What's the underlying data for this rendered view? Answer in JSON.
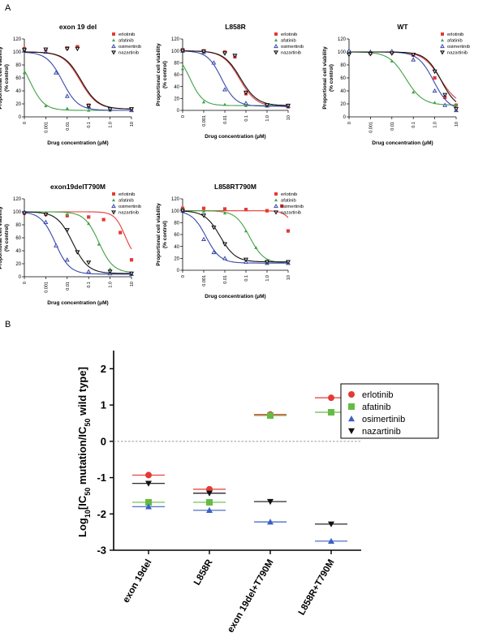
{
  "panel_labels": {
    "a": "A",
    "b": "B"
  },
  "chart_data": [
    {
      "type": "line",
      "panel": "A",
      "title": "exon 19 del",
      "xlabel": "Drug concentration (μM)",
      "ylabel": [
        "Proportional cell viability",
        "(% control)"
      ],
      "xlim": [
        0.0001,
        10
      ],
      "ylim": [
        0,
        120
      ],
      "xscale": "log",
      "x_ticks": [
        "0",
        "0.001",
        "0.01",
        "0.1",
        "1.0",
        "10"
      ],
      "y_ticks": [
        "0",
        "20",
        "40",
        "60",
        "80",
        "100",
        "120"
      ],
      "series": [
        {
          "name": "erlotinib",
          "ic50": 0.04,
          "hill": 1.1,
          "color": "#e53935",
          "marker": "square",
          "points": [
            [
              0.0001,
              105
            ],
            [
              0.001,
              104
            ],
            [
              0.01,
              106
            ],
            [
              0.03,
              108
            ],
            [
              0.1,
              18
            ],
            [
              1,
              12
            ],
            [
              10,
              12
            ]
          ]
        },
        {
          "name": "afatinib",
          "ic50": 0.00018,
          "hill": 1.3,
          "color": "#43a047",
          "marker": "triangle",
          "points": [
            [
              0.0001,
              68
            ],
            [
              0.001,
              17
            ],
            [
              0.01,
              13
            ],
            [
              0.1,
              10
            ],
            [
              1,
              10
            ],
            [
              10,
              10
            ]
          ]
        },
        {
          "name": "osimertinib",
          "ic50": 0.006,
          "hill": 1.2,
          "color": "#3949ab",
          "marker": "triangle-open",
          "points": [
            [
              0.0001,
              102
            ],
            [
              0.001,
              100
            ],
            [
              0.003,
              68
            ],
            [
              0.01,
              32
            ],
            [
              0.1,
              16
            ],
            [
              1,
              12
            ],
            [
              10,
              10
            ]
          ]
        },
        {
          "name": "nazartinib",
          "ic50": 0.045,
          "hill": 1.1,
          "color": "#111111",
          "marker": "triangle-down-open",
          "points": [
            [
              0.0001,
              103
            ],
            [
              0.001,
              104
            ],
            [
              0.01,
              105
            ],
            [
              0.03,
              105
            ],
            [
              0.1,
              17
            ],
            [
              1,
              12
            ],
            [
              10,
              12
            ]
          ]
        }
      ]
    },
    {
      "type": "line",
      "panel": "A",
      "title": "L858R",
      "xlabel": "Drug concentration (μM)",
      "ylabel": [
        "Proportional cell viability",
        "(% control)"
      ],
      "xlim": [
        0.0001,
        10
      ],
      "ylim": [
        0,
        120
      ],
      "xscale": "log",
      "x_ticks": [
        "0",
        "0.001",
        "0.01",
        "0.1",
        "1.0",
        "10"
      ],
      "y_ticks": [
        "0",
        "20",
        "40",
        "60",
        "80",
        "100",
        "120"
      ],
      "series": [
        {
          "name": "erlotinib",
          "ic50": 0.05,
          "hill": 1.1,
          "color": "#e53935",
          "marker": "square",
          "points": [
            [
              0.0001,
              102
            ],
            [
              0.001,
              100
            ],
            [
              0.01,
              98
            ],
            [
              0.03,
              90
            ],
            [
              0.1,
              28
            ],
            [
              1,
              8
            ],
            [
              10,
              6
            ]
          ]
        },
        {
          "name": "afatinib",
          "ic50": 0.00022,
          "hill": 1.4,
          "color": "#43a047",
          "marker": "triangle",
          "points": [
            [
              0.0001,
              70
            ],
            [
              0.001,
              14
            ],
            [
              0.01,
              10
            ],
            [
              0.1,
              8
            ],
            [
              1,
              8
            ],
            [
              10,
              8
            ]
          ]
        },
        {
          "name": "osimertinib",
          "ic50": 0.007,
          "hill": 1.3,
          "color": "#3949ab",
          "marker": "triangle-open",
          "points": [
            [
              0.0001,
              100
            ],
            [
              0.001,
              98
            ],
            [
              0.003,
              80
            ],
            [
              0.01,
              35
            ],
            [
              0.1,
              12
            ],
            [
              1,
              8
            ],
            [
              10,
              7
            ]
          ]
        },
        {
          "name": "nazartinib",
          "ic50": 0.055,
          "hill": 1.1,
          "color": "#111111",
          "marker": "triangle-down-open",
          "points": [
            [
              0.0001,
              100
            ],
            [
              0.001,
              99
            ],
            [
              0.01,
              96
            ],
            [
              0.03,
              92
            ],
            [
              0.1,
              30
            ],
            [
              1,
              9
            ],
            [
              10,
              8
            ]
          ]
        }
      ]
    },
    {
      "type": "line",
      "panel": "A",
      "title": "WT",
      "xlabel": "Drug concentration (μM)",
      "ylabel": [
        "Proportional cell viability",
        "(% control)"
      ],
      "xlim": [
        0.0001,
        10
      ],
      "ylim": [
        0,
        120
      ],
      "xscale": "log",
      "x_ticks": [
        "0",
        "0.001",
        "0.01",
        "0.1",
        "1.0",
        "10"
      ],
      "y_ticks": [
        "0",
        "20",
        "40",
        "60",
        "80",
        "100",
        "120"
      ],
      "series": [
        {
          "name": "erlotinib",
          "ic50": 1.8,
          "hill": 1.1,
          "color": "#e53935",
          "marker": "square",
          "points": [
            [
              0.0001,
              100
            ],
            [
              0.001,
              98
            ],
            [
              0.01,
              99
            ],
            [
              0.1,
              95
            ],
            [
              1,
              60
            ],
            [
              3,
              30
            ],
            [
              10,
              18
            ]
          ]
        },
        {
          "name": "afatinib",
          "ic50": 0.045,
          "hill": 1.1,
          "color": "#43a047",
          "marker": "triangle",
          "points": [
            [
              0.0001,
              100
            ],
            [
              0.001,
              98
            ],
            [
              0.01,
              86
            ],
            [
              0.1,
              38
            ],
            [
              1,
              22
            ],
            [
              10,
              18
            ]
          ]
        },
        {
          "name": "osimertinib",
          "ic50": 0.9,
          "hill": 1.2,
          "color": "#3949ab",
          "marker": "triangle-open",
          "points": [
            [
              0.0001,
              102
            ],
            [
              0.001,
              100
            ],
            [
              0.01,
              101
            ],
            [
              0.1,
              88
            ],
            [
              1,
              40
            ],
            [
              3,
              18
            ],
            [
              10,
              10
            ]
          ]
        },
        {
          "name": "nazartinib",
          "ic50": 2.0,
          "hill": 1.2,
          "color": "#111111",
          "marker": "triangle-down-open",
          "points": [
            [
              0.0001,
              96
            ],
            [
              0.001,
              97
            ],
            [
              0.01,
              98
            ],
            [
              0.1,
              96
            ],
            [
              1,
              70
            ],
            [
              3,
              34
            ],
            [
              10,
              12
            ]
          ]
        }
      ]
    },
    {
      "type": "line",
      "panel": "A",
      "title": "exon19delT790M",
      "xlabel": "Drug concentration (μM)",
      "ylabel": [
        "Proportional cell viability",
        "(% control)"
      ],
      "xlim": [
        0.0001,
        10
      ],
      "ylim": [
        0,
        120
      ],
      "xscale": "log",
      "x_ticks": [
        "0",
        "0.001",
        "0.01",
        "0.1",
        "1.0",
        "10"
      ],
      "y_ticks": [
        "0",
        "20",
        "40",
        "60",
        "80",
        "100",
        "120"
      ],
      "series": [
        {
          "name": "erlotinib",
          "ic50": 5.0,
          "hill": 1.8,
          "color": "#e53935",
          "marker": "square",
          "points": [
            [
              0.0001,
              98
            ],
            [
              0.001,
              96
            ],
            [
              0.01,
              94
            ],
            [
              0.1,
              92
            ],
            [
              0.5,
              88
            ],
            [
              3,
              68
            ],
            [
              10,
              26
            ]
          ]
        },
        {
          "name": "afatinib",
          "ic50": 0.3,
          "hill": 1.3,
          "color": "#43a047",
          "marker": "triangle",
          "points": [
            [
              0.0001,
              100
            ],
            [
              0.001,
              98
            ],
            [
              0.01,
              96
            ],
            [
              0.1,
              82
            ],
            [
              0.3,
              50
            ],
            [
              1,
              12
            ],
            [
              10,
              6
            ]
          ]
        },
        {
          "name": "osimertinib",
          "ic50": 0.0028,
          "hill": 1.3,
          "color": "#3949ab",
          "marker": "triangle-open",
          "points": [
            [
              0.0001,
              100
            ],
            [
              0.001,
              84
            ],
            [
              0.003,
              48
            ],
            [
              0.01,
              26
            ],
            [
              0.1,
              8
            ],
            [
              1,
              5
            ],
            [
              10,
              4
            ]
          ]
        },
        {
          "name": "nazartinib",
          "ic50": 0.018,
          "hill": 1.2,
          "color": "#111111",
          "marker": "triangle-down-open",
          "points": [
            [
              0.0001,
              98
            ],
            [
              0.001,
              96
            ],
            [
              0.01,
              72
            ],
            [
              0.03,
              38
            ],
            [
              0.1,
              22
            ],
            [
              1,
              8
            ],
            [
              10,
              5
            ]
          ]
        }
      ]
    },
    {
      "type": "line",
      "panel": "A",
      "title": "L858RT790M",
      "xlabel": "Drug concentration (μM)",
      "ylabel": [
        "Proportional cell viability",
        "(% control)"
      ],
      "xlim": [
        0.0001,
        10
      ],
      "ylim": [
        0,
        120
      ],
      "xscale": "log",
      "x_ticks": [
        "0",
        "0.001",
        "0.01",
        "0.1",
        "1.0",
        "10"
      ],
      "y_ticks": [
        "0",
        "20",
        "40",
        "60",
        "80",
        "100",
        "120"
      ],
      "series": [
        {
          "name": "erlotinib",
          "ic50": 14,
          "hill": 2.0,
          "color": "#e53935",
          "marker": "square",
          "points": [
            [
              0.0001,
              104
            ],
            [
              0.001,
              104
            ],
            [
              0.01,
              103
            ],
            [
              0.1,
              102
            ],
            [
              1,
              100
            ],
            [
              5,
              108
            ],
            [
              10,
              66
            ]
          ]
        },
        {
          "name": "afatinib",
          "ic50": 0.15,
          "hill": 1.3,
          "color": "#43a047",
          "marker": "triangle",
          "points": [
            [
              0.0001,
              100
            ],
            [
              0.001,
              99
            ],
            [
              0.01,
              96
            ],
            [
              0.1,
              66
            ],
            [
              0.3,
              38
            ],
            [
              1,
              16
            ],
            [
              10,
              12
            ]
          ]
        },
        {
          "name": "osimertinib",
          "ic50": 0.0013,
          "hill": 1.3,
          "color": "#3949ab",
          "marker": "triangle-open",
          "points": [
            [
              0.0001,
              100
            ],
            [
              0.001,
              52
            ],
            [
              0.003,
              30
            ],
            [
              0.01,
              20
            ],
            [
              0.1,
              14
            ],
            [
              1,
              12
            ],
            [
              10,
              12
            ]
          ]
        },
        {
          "name": "nazartinib",
          "ic50": 0.006,
          "hill": 1.2,
          "color": "#111111",
          "marker": "triangle-down-open",
          "points": [
            [
              0.0001,
              100
            ],
            [
              0.001,
              92
            ],
            [
              0.003,
              72
            ],
            [
              0.01,
              44
            ],
            [
              0.1,
              18
            ],
            [
              1,
              14
            ],
            [
              10,
              14
            ]
          ]
        }
      ]
    },
    {
      "type": "scatter",
      "panel": "B",
      "ylabel": "Log10[IC50 mutation/IC50 wild type]",
      "ylabel_parts": [
        "Log",
        "10",
        "[IC",
        "50",
        " mutation/IC",
        "50",
        " wild type]"
      ],
      "ylim": [
        -3,
        2.5
      ],
      "y_ticks": [
        "-3",
        "-2",
        "-1",
        "0",
        "1",
        "2"
      ],
      "categories": [
        "exon 19del",
        "L858R",
        "exon 19del+T790M",
        "L858R+T790M"
      ],
      "annotation": "*",
      "series": [
        {
          "name": "erlotinib",
          "marker": "circle",
          "color": "#e53935",
          "values": [
            -0.93,
            -1.32,
            0.74,
            1.2
          ]
        },
        {
          "name": "afatinib",
          "marker": "square",
          "color": "#66bb44",
          "values": [
            -1.68,
            -1.68,
            0.71,
            0.8
          ]
        },
        {
          "name": "osimertinib",
          "marker": "triangle",
          "color": "#3a60c4",
          "values": [
            -1.8,
            -1.9,
            -2.22,
            -2.75
          ]
        },
        {
          "name": "nazartinib",
          "marker": "triangle-down",
          "color": "#111111",
          "values": [
            -1.16,
            -1.43,
            -1.66,
            -2.28
          ]
        }
      ]
    }
  ]
}
